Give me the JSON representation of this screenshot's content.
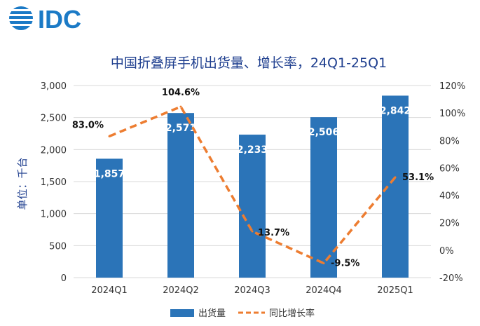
{
  "logo_text": "IDC",
  "colors": {
    "bar": "#2b74b8",
    "line": "#ed7d31",
    "title": "#1f3f8f",
    "grid": "#d9d9d9",
    "logo": "#1b7ac6"
  },
  "chart_data": {
    "type": "bar",
    "title": "中国折叠屏手机出货量、增长率，24Q1-25Q1",
    "ylabel": "单位：千台",
    "categories": [
      "2024Q1",
      "2024Q2",
      "2024Q3",
      "2024Q4",
      "2025Q1"
    ],
    "bar_labels": [
      "1,857",
      "2,571",
      "2,233",
      "2,506",
      "2,842"
    ],
    "line_labels": [
      "83.0%",
      "104.6%",
      "13.7%",
      "-9.5%",
      "53.1%"
    ],
    "left_ticks": [
      "0",
      "500",
      "1,000",
      "1,500",
      "2,000",
      "2,500",
      "3,000"
    ],
    "right_ticks": [
      "-20%",
      "0%",
      "20%",
      "40%",
      "60%",
      "80%",
      "100%",
      "120%"
    ],
    "ylim_left": [
      0,
      3000
    ],
    "ylim_right": [
      -20,
      120
    ],
    "series": [
      {
        "name": "出货量",
        "kind": "bar",
        "axis": "left",
        "values": [
          1857,
          2571,
          2233,
          2506,
          2842
        ]
      },
      {
        "name": "同比增长率",
        "kind": "line",
        "axis": "right",
        "style": "dashed",
        "values": [
          83.0,
          104.6,
          13.7,
          -9.5,
          53.1
        ]
      }
    ],
    "grid": true,
    "legend_position": "bottom"
  }
}
